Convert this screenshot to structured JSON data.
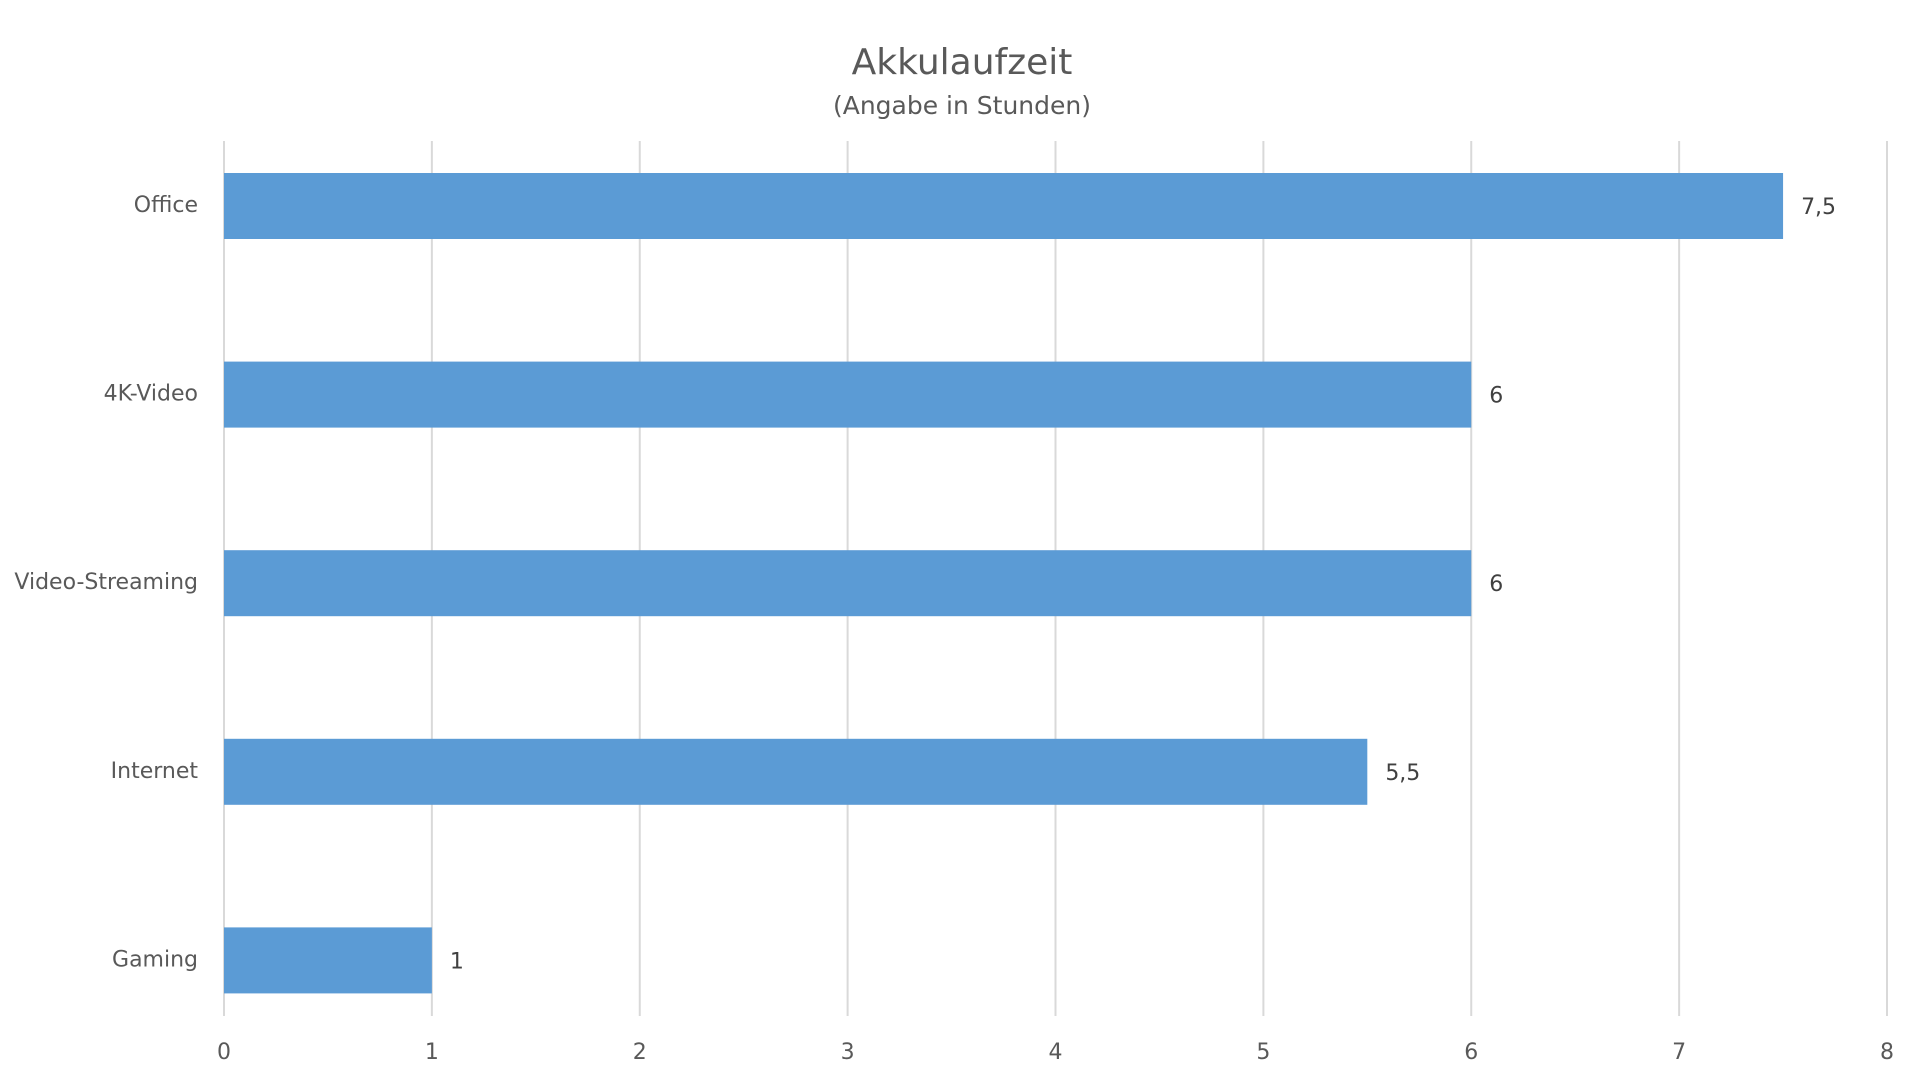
{
  "chart_data": {
    "type": "bar",
    "orientation": "horizontal",
    "title": "Akkulaufzeit",
    "subtitle": "(Angabe in Stunden)",
    "categories": [
      "Office",
      "4K-Video",
      "Video-Streaming",
      "Internet",
      "Gaming"
    ],
    "values": [
      7.5,
      6,
      6,
      5.5,
      1
    ],
    "value_labels": [
      "7,5",
      "6",
      "6",
      "5,5",
      "1"
    ],
    "color": "#5b9bd5",
    "xlim": [
      0,
      8
    ],
    "xticks": [
      0,
      1,
      2,
      3,
      4,
      5,
      6,
      7,
      8
    ],
    "grid": true
  }
}
